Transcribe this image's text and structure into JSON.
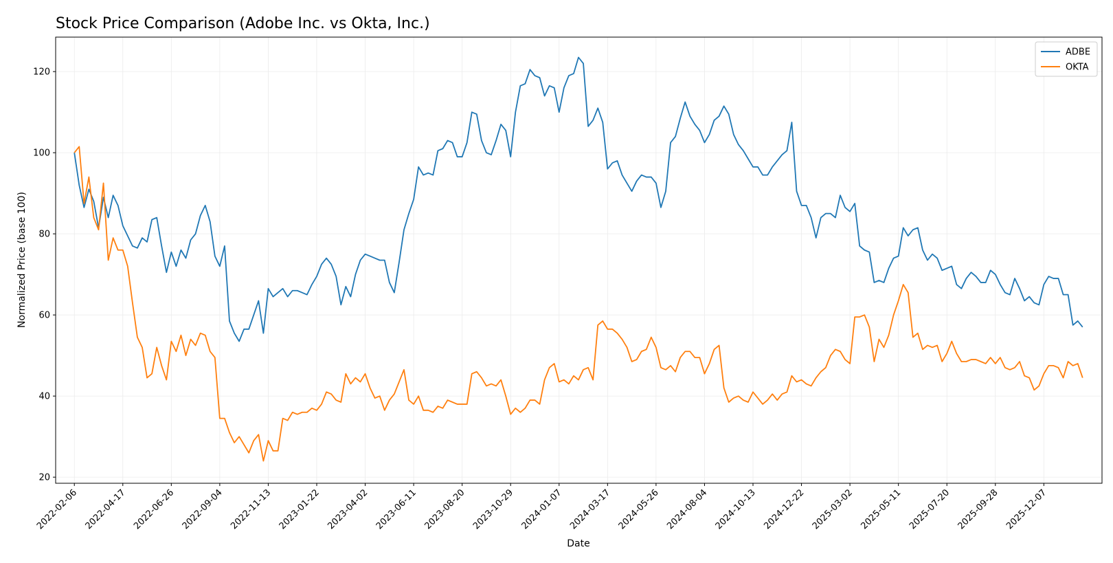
{
  "chart_data": {
    "type": "line",
    "title": "Stock Price Comparison (Adobe Inc. vs Okta, Inc.)",
    "xlabel": "Date",
    "ylabel": "Normalized Price (base 100)",
    "x_range": [
      "2022-01-10",
      "2026-03-01"
    ],
    "ylim": [
      18.5,
      128.5
    ],
    "yticks": [
      20,
      40,
      60,
      80,
      100,
      120
    ],
    "xticks": [
      "2022-02-06",
      "2022-04-17",
      "2022-06-26",
      "2022-09-04",
      "2022-11-13",
      "2023-01-22",
      "2023-04-02",
      "2023-06-11",
      "2023-08-20",
      "2023-10-29",
      "2024-01-07",
      "2024-03-17",
      "2024-05-26",
      "2024-08-04",
      "2024-10-13",
      "2024-12-22",
      "2025-03-02",
      "2025-05-11",
      "2025-07-20",
      "2025-09-28",
      "2025-12-07"
    ],
    "grid": true,
    "legend": "top-right",
    "start_date": "2022-02-06",
    "step_days": 7,
    "series": [
      {
        "name": "ADBE",
        "color": "#1f77b4",
        "values": [
          100,
          92,
          86.5,
          91,
          88,
          81.5,
          89,
          84,
          89.5,
          87,
          82,
          79.5,
          77,
          76.5,
          79,
          78,
          83.5,
          84,
          77,
          70.5,
          75.5,
          72,
          76,
          74,
          78.5,
          80,
          84.5,
          87,
          83,
          74.5,
          72,
          77,
          58.5,
          55.5,
          53.5,
          56.5,
          56.5,
          60,
          63.5,
          55.5,
          66.5,
          64.5,
          65.5,
          66.5,
          64.5,
          66,
          66,
          65.5,
          65,
          67.5,
          69.5,
          72.5,
          74,
          72.5,
          69.5,
          62.5,
          67,
          64.5,
          70,
          73.5,
          75,
          74.5,
          74,
          73.5,
          73.5,
          68,
          65.5,
          73,
          81,
          85,
          88.5,
          96.5,
          94.5,
          95,
          94.5,
          100.5,
          101,
          103,
          102.5,
          99,
          99,
          102.5,
          110,
          109.5,
          103,
          100,
          99.5,
          103,
          107,
          105.5,
          99,
          110,
          116.5,
          117,
          120.5,
          119,
          118.5,
          114,
          116.5,
          116,
          110,
          116,
          119,
          119.5,
          123.5,
          122,
          106.5,
          108,
          111,
          107.5,
          96,
          97.5,
          98,
          94.5,
          92.5,
          90.5,
          93,
          94.5,
          94,
          94,
          92.5,
          86.5,
          90.5,
          102.5,
          104,
          108.5,
          112.5,
          109,
          107,
          105.5,
          102.5,
          104.5,
          108,
          109,
          111.5,
          109.5,
          104.5,
          102,
          100.5,
          98.5,
          96.5,
          96.5,
          94.5,
          94.5,
          96.5,
          98,
          99.5,
          100.5,
          107.5,
          90.5,
          87,
          87,
          84,
          79,
          84,
          85,
          85,
          84,
          89.5,
          86.5,
          85.5,
          87.5,
          77,
          76,
          75.5,
          68,
          68.5,
          68,
          71.5,
          74,
          74.5,
          81.5,
          79.5,
          81,
          81.5,
          76,
          73.5,
          75,
          74,
          71,
          71.5,
          72,
          67.5,
          66.5,
          69,
          70.5,
          69.5,
          68,
          68,
          71,
          70,
          67.5,
          65.5,
          65,
          69,
          66.5,
          63.5,
          64.5,
          63,
          62.5,
          67.5,
          69.5,
          69,
          69,
          65,
          65,
          57.5,
          58.5,
          57
        ]
      },
      {
        "name": "OKTA",
        "color": "#ff7f0e",
        "values": [
          100,
          101.5,
          87.5,
          94,
          84,
          81,
          92.5,
          73.5,
          79,
          76,
          76,
          72,
          63,
          54.5,
          52,
          44.5,
          45.5,
          52,
          47.5,
          44,
          53.5,
          51,
          55,
          50,
          54,
          52.5,
          55.5,
          55,
          51,
          49.5,
          34.5,
          34.5,
          31,
          28.5,
          30,
          28,
          26,
          29,
          30.5,
          24,
          29,
          26.5,
          26.5,
          34.5,
          34,
          36,
          35.5,
          36,
          36,
          37,
          36.5,
          38,
          41,
          40.5,
          39,
          38.5,
          45.5,
          43,
          44.5,
          43.5,
          45.5,
          42,
          39.5,
          40,
          36.5,
          39,
          40.5,
          43.5,
          46.5,
          39,
          38,
          40,
          36.5,
          36.5,
          36,
          37.5,
          37,
          39,
          38.5,
          38,
          38,
          38,
          45.5,
          46,
          44.5,
          42.5,
          43,
          42.5,
          44,
          40,
          35.5,
          37,
          36,
          37,
          39,
          39,
          38,
          44,
          47,
          48,
          43.5,
          44,
          43,
          45,
          44,
          46.5,
          47,
          44,
          57.5,
          58.5,
          56.5,
          56.5,
          55.5,
          54,
          52,
          48.5,
          49,
          51,
          51.5,
          54.5,
          52,
          47,
          46.5,
          47.5,
          46,
          49.5,
          51,
          51,
          49.5,
          49.5,
          45.5,
          48,
          51.5,
          52.5,
          42,
          38.5,
          39.5,
          40,
          39,
          38.5,
          41,
          39.5,
          38,
          39,
          40.5,
          39,
          40.5,
          41,
          45,
          43.5,
          44,
          43,
          42.5,
          44.5,
          46,
          47,
          50,
          51.5,
          51,
          49,
          48,
          59.5,
          59.5,
          60,
          57,
          48.5,
          54,
          52,
          55,
          60,
          63.5,
          67.5,
          65.5,
          54.5,
          55.5,
          51.5,
          52.5,
          52,
          52.5,
          48.5,
          50.5,
          53.5,
          50.5,
          48.5,
          48.5,
          49,
          49,
          48.5,
          48,
          49.5,
          48,
          49.5,
          47,
          46.5,
          47,
          48.5,
          45,
          44.5,
          41.5,
          42.5,
          45.5,
          47.5,
          47.5,
          47,
          44.5,
          48.5,
          47.5,
          48,
          44.5
        ]
      }
    ]
  }
}
